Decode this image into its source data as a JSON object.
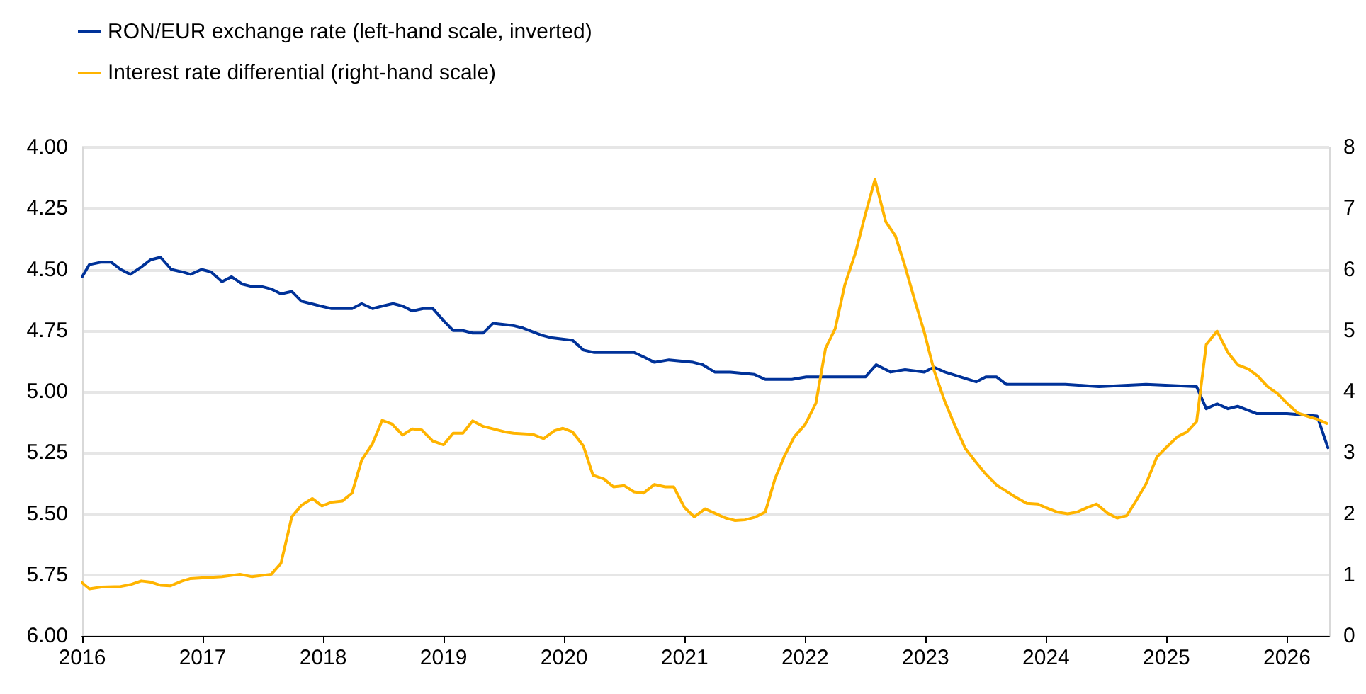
{
  "chart_data": {
    "type": "line",
    "xlim": [
      2016,
      2026.35
    ],
    "xticks": [
      2016,
      2017,
      2018,
      2019,
      2020,
      2021,
      2022,
      2023,
      2024,
      2025,
      2026
    ],
    "ylim": [
      6,
      4
    ],
    "yticks": [
      {
        "value": 4,
        "label": "4.00"
      },
      {
        "value": 4.25,
        "label": "4.25"
      },
      {
        "value": 4.5,
        "label": "4.50"
      },
      {
        "value": 4.75,
        "label": "4.75"
      },
      {
        "value": 5,
        "label": "5.00"
      },
      {
        "value": 5.25,
        "label": "5.25"
      },
      {
        "value": 5.5,
        "label": "5.50"
      },
      {
        "value": 5.75,
        "label": "5.75"
      },
      {
        "value": 6,
        "label": "6.00"
      }
    ],
    "y2lim": [
      0,
      8
    ],
    "y2ticks": [
      0,
      1,
      2,
      3,
      4,
      5,
      6,
      7,
      8
    ],
    "grid": "y",
    "legend": "top left",
    "marker": "none",
    "line_style": "solid",
    "series": [
      {
        "name": "RON/EUR exchange rate (left-hand scale, inverted)",
        "color": "#003299",
        "x": [
          2016.0,
          2016.06,
          2016.16,
          2016.24,
          2016.32,
          2016.4,
          2016.49,
          2016.57,
          2016.65,
          2016.74,
          2016.83,
          2016.9,
          2016.99,
          2017.07,
          2017.16,
          2017.24,
          2017.33,
          2017.41,
          2017.49,
          2017.57,
          2017.65,
          2017.74,
          2017.82,
          2017.9,
          2017.98,
          2018.07,
          2018.16,
          2018.24,
          2018.32,
          2018.41,
          2018.49,
          2018.58,
          2018.66,
          2018.74,
          2018.83,
          2018.91,
          2019.0,
          2019.08,
          2019.16,
          2019.24,
          2019.33,
          2019.41,
          2019.58,
          2019.66,
          2019.82,
          2019.9,
          2020.07,
          2020.16,
          2020.25,
          2020.4,
          2020.58,
          2020.67,
          2020.75,
          2020.87,
          2021.07,
          2021.15,
          2021.25,
          2021.38,
          2021.58,
          2021.67,
          2021.89,
          2022.01,
          2022.17,
          2022.32,
          2022.5,
          2022.59,
          2022.71,
          2022.83,
          2022.99,
          2023.07,
          2023.16,
          2023.42,
          2023.5,
          2023.59,
          2023.67,
          2023.97,
          2024.16,
          2024.44,
          2024.83,
          2025.25,
          2025.33,
          2025.42,
          2025.51,
          2025.59,
          2025.75,
          2026.0,
          2026.25,
          2026.34
        ],
        "values": [
          4.53,
          4.48,
          4.47,
          4.47,
          4.5,
          4.52,
          4.49,
          4.46,
          4.45,
          4.5,
          4.51,
          4.52,
          4.5,
          4.51,
          4.55,
          4.53,
          4.56,
          4.57,
          4.57,
          4.58,
          4.6,
          4.59,
          4.63,
          4.64,
          4.65,
          4.66,
          4.66,
          4.66,
          4.64,
          4.66,
          4.65,
          4.64,
          4.65,
          4.67,
          4.66,
          4.66,
          4.71,
          4.75,
          4.75,
          4.76,
          4.76,
          4.72,
          4.73,
          4.74,
          4.77,
          4.78,
          4.79,
          4.83,
          4.84,
          4.84,
          4.84,
          4.86,
          4.88,
          4.87,
          4.88,
          4.89,
          4.92,
          4.92,
          4.93,
          4.95,
          4.95,
          4.94,
          4.94,
          4.94,
          4.94,
          4.89,
          4.92,
          4.91,
          4.92,
          4.9,
          4.92,
          4.96,
          4.94,
          4.94,
          4.97,
          4.97,
          4.97,
          4.98,
          4.97,
          4.98,
          5.07,
          5.05,
          5.07,
          5.06,
          5.09,
          5.09,
          5.1,
          5.23
        ]
      },
      {
        "name": "Interest rate differential (right-hand scale)",
        "color": "#ffb400",
        "axis": "y2",
        "x": [
          2016.0,
          2016.06,
          2016.16,
          2016.32,
          2016.4,
          2016.49,
          2016.57,
          2016.65,
          2016.73,
          2016.83,
          2016.9,
          2017.16,
          2017.31,
          2017.41,
          2017.57,
          2017.65,
          2017.74,
          2017.82,
          2017.91,
          2017.99,
          2018.07,
          2018.16,
          2018.24,
          2018.32,
          2018.41,
          2018.49,
          2018.57,
          2018.66,
          2018.74,
          2018.82,
          2018.91,
          2019.0,
          2019.08,
          2019.16,
          2019.24,
          2019.33,
          2019.51,
          2019.58,
          2019.74,
          2019.83,
          2019.92,
          2019.99,
          2020.07,
          2020.16,
          2020.24,
          2020.33,
          2020.41,
          2020.5,
          2020.58,
          2020.66,
          2020.75,
          2020.84,
          2020.91,
          2021.0,
          2021.08,
          2021.17,
          2021.25,
          2021.34,
          2021.42,
          2021.5,
          2021.58,
          2021.67,
          2021.75,
          2021.83,
          2021.91,
          2022.0,
          2022.09,
          2022.17,
          2022.25,
          2022.33,
          2022.42,
          2022.5,
          2022.58,
          2022.67,
          2022.75,
          2022.83,
          2022.92,
          2022.99,
          2023.07,
          2023.16,
          2023.24,
          2023.33,
          2023.42,
          2023.5,
          2023.59,
          2023.67,
          2023.75,
          2023.84,
          2023.93,
          2024.0,
          2024.09,
          2024.18,
          2024.26,
          2024.34,
          2024.42,
          2024.51,
          2024.59,
          2024.67,
          2024.75,
          2024.83,
          2024.92,
          2025.0,
          2025.09,
          2025.17,
          2025.25,
          2025.33,
          2025.42,
          2025.51,
          2025.59,
          2025.68,
          2025.76,
          2025.84,
          2025.92,
          2026.0,
          2026.09,
          2026.18,
          2026.25,
          2026.33
        ],
        "values": [
          0.87,
          0.77,
          0.8,
          0.81,
          0.84,
          0.9,
          0.88,
          0.83,
          0.82,
          0.9,
          0.94,
          0.97,
          1.01,
          0.97,
          1.01,
          1.19,
          1.95,
          2.14,
          2.25,
          2.13,
          2.19,
          2.21,
          2.34,
          2.88,
          3.15,
          3.53,
          3.47,
          3.29,
          3.39,
          3.37,
          3.19,
          3.13,
          3.32,
          3.32,
          3.52,
          3.43,
          3.34,
          3.32,
          3.3,
          3.23,
          3.36,
          3.4,
          3.34,
          3.11,
          2.63,
          2.57,
          2.44,
          2.46,
          2.36,
          2.34,
          2.48,
          2.44,
          2.44,
          2.1,
          1.95,
          2.08,
          2.01,
          1.93,
          1.89,
          1.9,
          1.94,
          2.03,
          2.57,
          2.95,
          3.26,
          3.46,
          3.81,
          4.71,
          5.03,
          5.75,
          6.28,
          6.9,
          7.47,
          6.78,
          6.55,
          6.05,
          5.43,
          4.97,
          4.35,
          3.84,
          3.46,
          3.07,
          2.84,
          2.65,
          2.47,
          2.37,
          2.27,
          2.17,
          2.16,
          2.1,
          2.03,
          2.0,
          2.03,
          2.1,
          2.16,
          2.01,
          1.93,
          1.97,
          2.22,
          2.49,
          2.93,
          3.09,
          3.26,
          3.34,
          3.51,
          4.77,
          4.99,
          4.64,
          4.44,
          4.37,
          4.25,
          4.08,
          3.97,
          3.81,
          3.65,
          3.59,
          3.55,
          3.48
        ]
      }
    ]
  }
}
